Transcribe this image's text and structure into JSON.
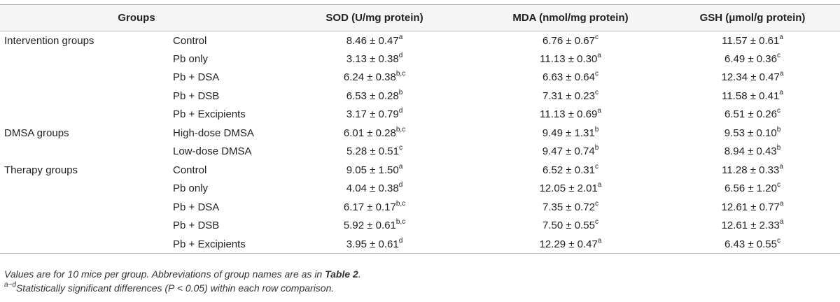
{
  "table": {
    "headers": {
      "groups": "Groups",
      "sod": "SOD (U/mg protein)",
      "mda": "MDA (nmol/mg protein)",
      "gsh": "GSH (μmol/g protein)"
    },
    "rows": [
      {
        "group": "Intervention groups",
        "subgroup": "Control",
        "sod": "8.46 ± 0.47",
        "sod_sup": "a",
        "mda": "6.76 ± 0.67",
        "mda_sup": "c",
        "gsh": "11.57 ± 0.61",
        "gsh_sup": "a"
      },
      {
        "group": "",
        "subgroup": "Pb only",
        "sod": "3.13 ± 0.38",
        "sod_sup": "d",
        "mda": "11.13 ± 0.30",
        "mda_sup": "a",
        "gsh": "6.49 ± 0.36",
        "gsh_sup": "c"
      },
      {
        "group": "",
        "subgroup": "Pb + DSA",
        "sod": "6.24 ± 0.38",
        "sod_sup": "b,c",
        "mda": "6.63 ± 0.64",
        "mda_sup": "c",
        "gsh": "12.34 ± 0.47",
        "gsh_sup": "a"
      },
      {
        "group": "",
        "subgroup": "Pb + DSB",
        "sod": "6.53 ± 0.28",
        "sod_sup": "b",
        "mda": "7.31 ± 0.23",
        "mda_sup": "c",
        "gsh": "11.58 ± 0.41",
        "gsh_sup": "a"
      },
      {
        "group": "",
        "subgroup": "Pb + Excipients",
        "sod": "3.17 ± 0.79",
        "sod_sup": "d",
        "mda": "11.13 ± 0.69",
        "mda_sup": "a",
        "gsh": "6.51 ± 0.26",
        "gsh_sup": "c"
      },
      {
        "group": "DMSA groups",
        "subgroup": "High-dose DMSA",
        "sod": "6.01 ± 0.28",
        "sod_sup": "b,c",
        "mda": "9.49 ± 1.31",
        "mda_sup": "b",
        "gsh": "9.53 ± 0.10",
        "gsh_sup": "b"
      },
      {
        "group": "",
        "subgroup": "Low-dose DMSA",
        "sod": "5.28 ± 0.51",
        "sod_sup": "c",
        "mda": "9.47 ± 0.74",
        "mda_sup": "b",
        "gsh": "8.94 ± 0.43",
        "gsh_sup": "b"
      },
      {
        "group": "Therapy groups",
        "subgroup": "Control",
        "sod": "9.05 ± 1.50",
        "sod_sup": "a",
        "mda": "6.52 ± 0.31",
        "mda_sup": "c",
        "gsh": "11.28 ± 0.33",
        "gsh_sup": "a"
      },
      {
        "group": "",
        "subgroup": "Pb only",
        "sod": "4.04 ± 0.38",
        "sod_sup": "d",
        "mda": "12.05 ± 2.01",
        "mda_sup": "a",
        "gsh": "6.56 ± 1.20",
        "gsh_sup": "c"
      },
      {
        "group": "",
        "subgroup": "Pb + DSA",
        "sod": "6.17 ± 0.17",
        "sod_sup": "b,c",
        "mda": "7.35 ± 0.72",
        "mda_sup": "c",
        "gsh": "12.61 ± 0.77",
        "gsh_sup": "a"
      },
      {
        "group": "",
        "subgroup": "Pb + DSB",
        "sod": "5.92 ± 0.61",
        "sod_sup": "b,c",
        "mda": "7.50 ± 0.55",
        "mda_sup": "c",
        "gsh": "12.61 ± 2.33",
        "gsh_sup": "a"
      },
      {
        "group": "",
        "subgroup": "Pb + Excipients",
        "sod": "3.95 ± 0.61",
        "sod_sup": "d",
        "mda": "12.29 ± 0.47",
        "mda_sup": "a",
        "gsh": "6.43 ± 0.55",
        "gsh_sup": "c"
      }
    ]
  },
  "notes": {
    "line1_prefix": "Values are for 10 mice per group. Abbreviations of group names are as in ",
    "line1_ref": "Table 2",
    "line1_suffix": ".",
    "line2_sup": "a−d",
    "line2_text": "Statistically significant differences (P < 0.05) within each row comparison."
  }
}
